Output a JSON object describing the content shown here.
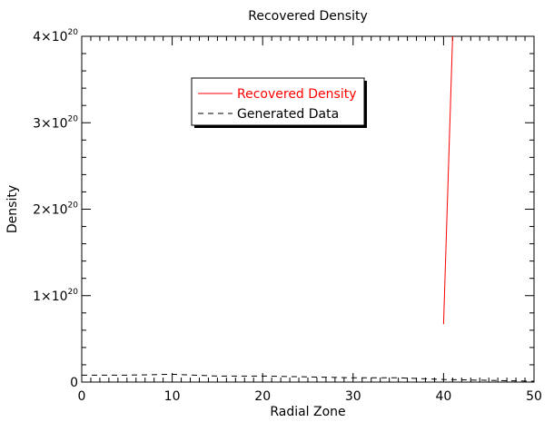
{
  "chart_data": {
    "type": "line",
    "title": "Recovered Density",
    "xlabel": "Radial Zone",
    "ylabel": "Density",
    "xlim": [
      0,
      50
    ],
    "ylim": [
      0,
      4e+20
    ],
    "x_ticks": [
      0,
      10,
      20,
      30,
      40,
      50
    ],
    "x_tick_labels": [
      "0",
      "10",
      "20",
      "30",
      "40",
      "50"
    ],
    "y_ticks": [
      0,
      1e+20,
      2e+20,
      3e+20,
      4e+20
    ],
    "y_tick_labels": [
      {
        "mantissa": "0",
        "exponent": ""
      },
      {
        "mantissa": "1×10",
        "exponent": "20"
      },
      {
        "mantissa": "2×10",
        "exponent": "20"
      },
      {
        "mantissa": "3×10",
        "exponent": "20"
      },
      {
        "mantissa": "4×10",
        "exponent": "20"
      }
    ],
    "legend_placement": "top-center",
    "series": [
      {
        "name": "Recovered Density",
        "style": "solid",
        "color": "#ff0000",
        "x": [
          40,
          41
        ],
        "y": [
          6.7e+19,
          4e+20
        ]
      },
      {
        "name": "Generated Data",
        "style": "dashed",
        "color": "#000000",
        "x": [
          0,
          5,
          10,
          15,
          20,
          25,
          30,
          35,
          40,
          45,
          50
        ],
        "y": [
          8e+18,
          8e+18,
          9e+18,
          7e+18,
          7e+18,
          6e+18,
          5e+18,
          5e+18,
          3e+18,
          2e+18,
          1e+18
        ]
      }
    ]
  }
}
